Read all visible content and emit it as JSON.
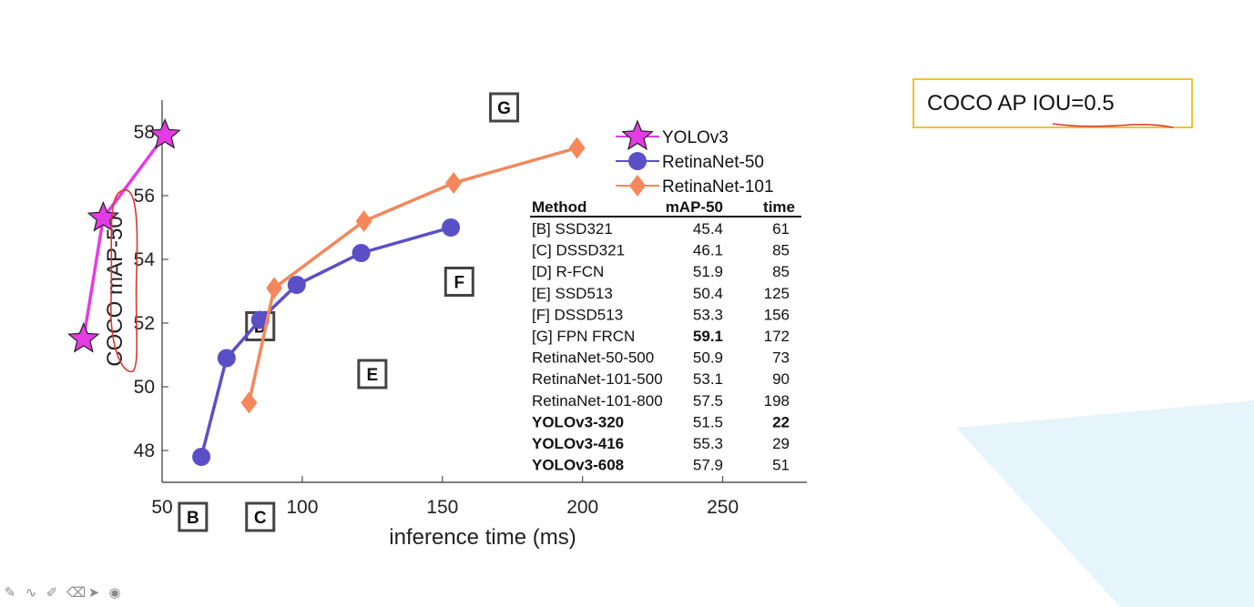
{
  "chart_data": {
    "type": "line",
    "title": "",
    "xlabel": "inference time (ms)",
    "ylabel": "COCO mAP-50",
    "xlim": [
      50,
      280
    ],
    "ylim": [
      47,
      59
    ],
    "xticks": [
      50,
      100,
      150,
      200,
      250
    ],
    "yticks": [
      48,
      50,
      52,
      54,
      56,
      58
    ],
    "grid": false,
    "legend_position": "top-right",
    "series": [
      {
        "name": "YOLOv3",
        "color": "#e43be6",
        "marker": "star",
        "x": [
          22,
          29,
          51
        ],
        "y": [
          51.5,
          55.3,
          57.9
        ]
      },
      {
        "name": "RetinaNet-50",
        "color": "#5b4fc7",
        "marker": "circle",
        "x": [
          64,
          73,
          85,
          98,
          121,
          153
        ],
        "y": [
          47.8,
          50.9,
          52.1,
          53.2,
          54.2,
          55.0
        ]
      },
      {
        "name": "RetinaNet-101",
        "color": "#f5875a",
        "marker": "diamond",
        "x": [
          81,
          90,
          122,
          154,
          198
        ],
        "y": [
          49.5,
          53.1,
          55.2,
          56.4,
          57.5
        ]
      }
    ],
    "method_points": [
      {
        "letter": "B",
        "x": 61,
        "y": 45.4
      },
      {
        "letter": "C",
        "x": 85,
        "y": 46.1
      },
      {
        "letter": "D",
        "x": 85,
        "y": 51.9
      },
      {
        "letter": "E",
        "x": 125,
        "y": 50.4
      },
      {
        "letter": "F",
        "x": 156,
        "y": 53.3
      },
      {
        "letter": "G",
        "x": 172,
        "y": 59.1
      }
    ],
    "table": {
      "headers": [
        "Method",
        "mAP-50",
        "time"
      ],
      "rows": [
        {
          "method": "[B] SSD321",
          "map": "45.4",
          "time": "61"
        },
        {
          "method": "[C] DSSD321",
          "map": "46.1",
          "time": "85"
        },
        {
          "method": "[D] R-FCN",
          "map": "51.9",
          "time": "85"
        },
        {
          "method": "[E] SSD513",
          "map": "50.4",
          "time": "125"
        },
        {
          "method": "[F] DSSD513",
          "map": "53.3",
          "time": "156"
        },
        {
          "method": "[G] FPN FRCN",
          "map": "59.1",
          "time": "172",
          "bold_map": true
        },
        {
          "method": "RetinaNet-50-500",
          "map": "50.9",
          "time": "73"
        },
        {
          "method": "RetinaNet-101-500",
          "map": "53.1",
          "time": "90"
        },
        {
          "method": "RetinaNet-101-800",
          "map": "57.5",
          "time": "198"
        },
        {
          "method": "YOLOv3-320",
          "map": "51.5",
          "time": "22",
          "bold_method": true,
          "bold_time": true
        },
        {
          "method": "YOLOv3-416",
          "map": "55.3",
          "time": "29",
          "bold_method": true
        },
        {
          "method": "YOLOv3-608",
          "map": "57.9",
          "time": "51",
          "bold_method": true
        }
      ]
    }
  },
  "callout": {
    "prefix": "COCO AP ",
    "underlined": "IOU=0.5",
    "border_color": "#f2c230"
  },
  "toolbar": {
    "icons": [
      "pen-icon",
      "ink-icon",
      "highlighter-icon",
      "eraser-icon",
      "pointer-icon",
      "laser-icon"
    ]
  }
}
